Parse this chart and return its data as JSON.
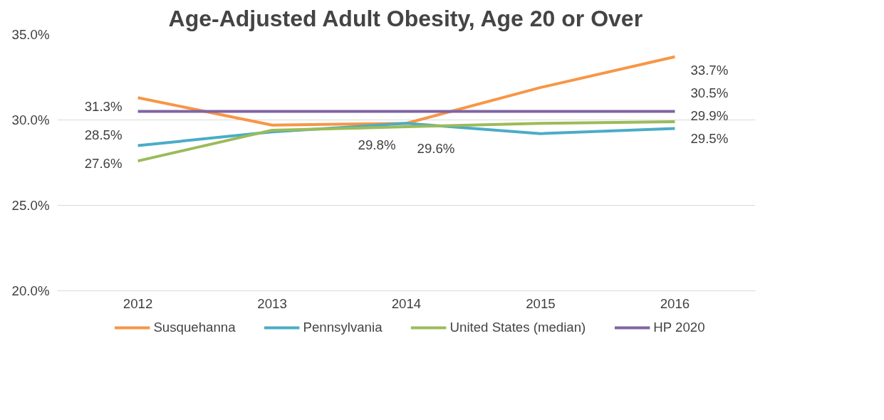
{
  "chart_data": {
    "type": "line",
    "title": "Age-Adjusted Adult Obesity, Age 20 or Over",
    "categories": [
      "2012",
      "2013",
      "2014",
      "2015",
      "2016"
    ],
    "series": [
      {
        "name": "Susquehanna",
        "color": "#f79646",
        "values": [
          31.3,
          29.7,
          29.8,
          31.9,
          33.7
        ],
        "value_labels": [
          "31.3%",
          null,
          "29.8%",
          null,
          "33.7%"
        ]
      },
      {
        "name": "Pennsylvania",
        "color": "#4bacc6",
        "values": [
          28.5,
          29.3,
          29.8,
          29.2,
          29.5
        ],
        "value_labels": [
          "28.5%",
          null,
          null,
          null,
          "29.5%"
        ]
      },
      {
        "name": "United States (median)",
        "color": "#9bbb59",
        "values": [
          27.6,
          29.4,
          29.6,
          29.8,
          29.9
        ],
        "value_labels": [
          "27.6%",
          null,
          "29.6%",
          null,
          "29.9%"
        ]
      },
      {
        "name": "HP 2020",
        "color": "#8064a2",
        "values": [
          30.5,
          30.5,
          30.5,
          30.5,
          30.5
        ],
        "value_labels": [
          null,
          null,
          null,
          null,
          "30.5%"
        ]
      }
    ],
    "ylim": [
      20,
      35
    ],
    "yticks": [
      {
        "value": 20,
        "label": "20.0%"
      },
      {
        "value": 25,
        "label": "25.0%"
      },
      {
        "value": 30,
        "label": "30.0%"
      },
      {
        "value": 35,
        "label": "35.0%"
      }
    ],
    "grid": "y",
    "legend": "bottom",
    "marker": "none",
    "line_style": "solid"
  }
}
